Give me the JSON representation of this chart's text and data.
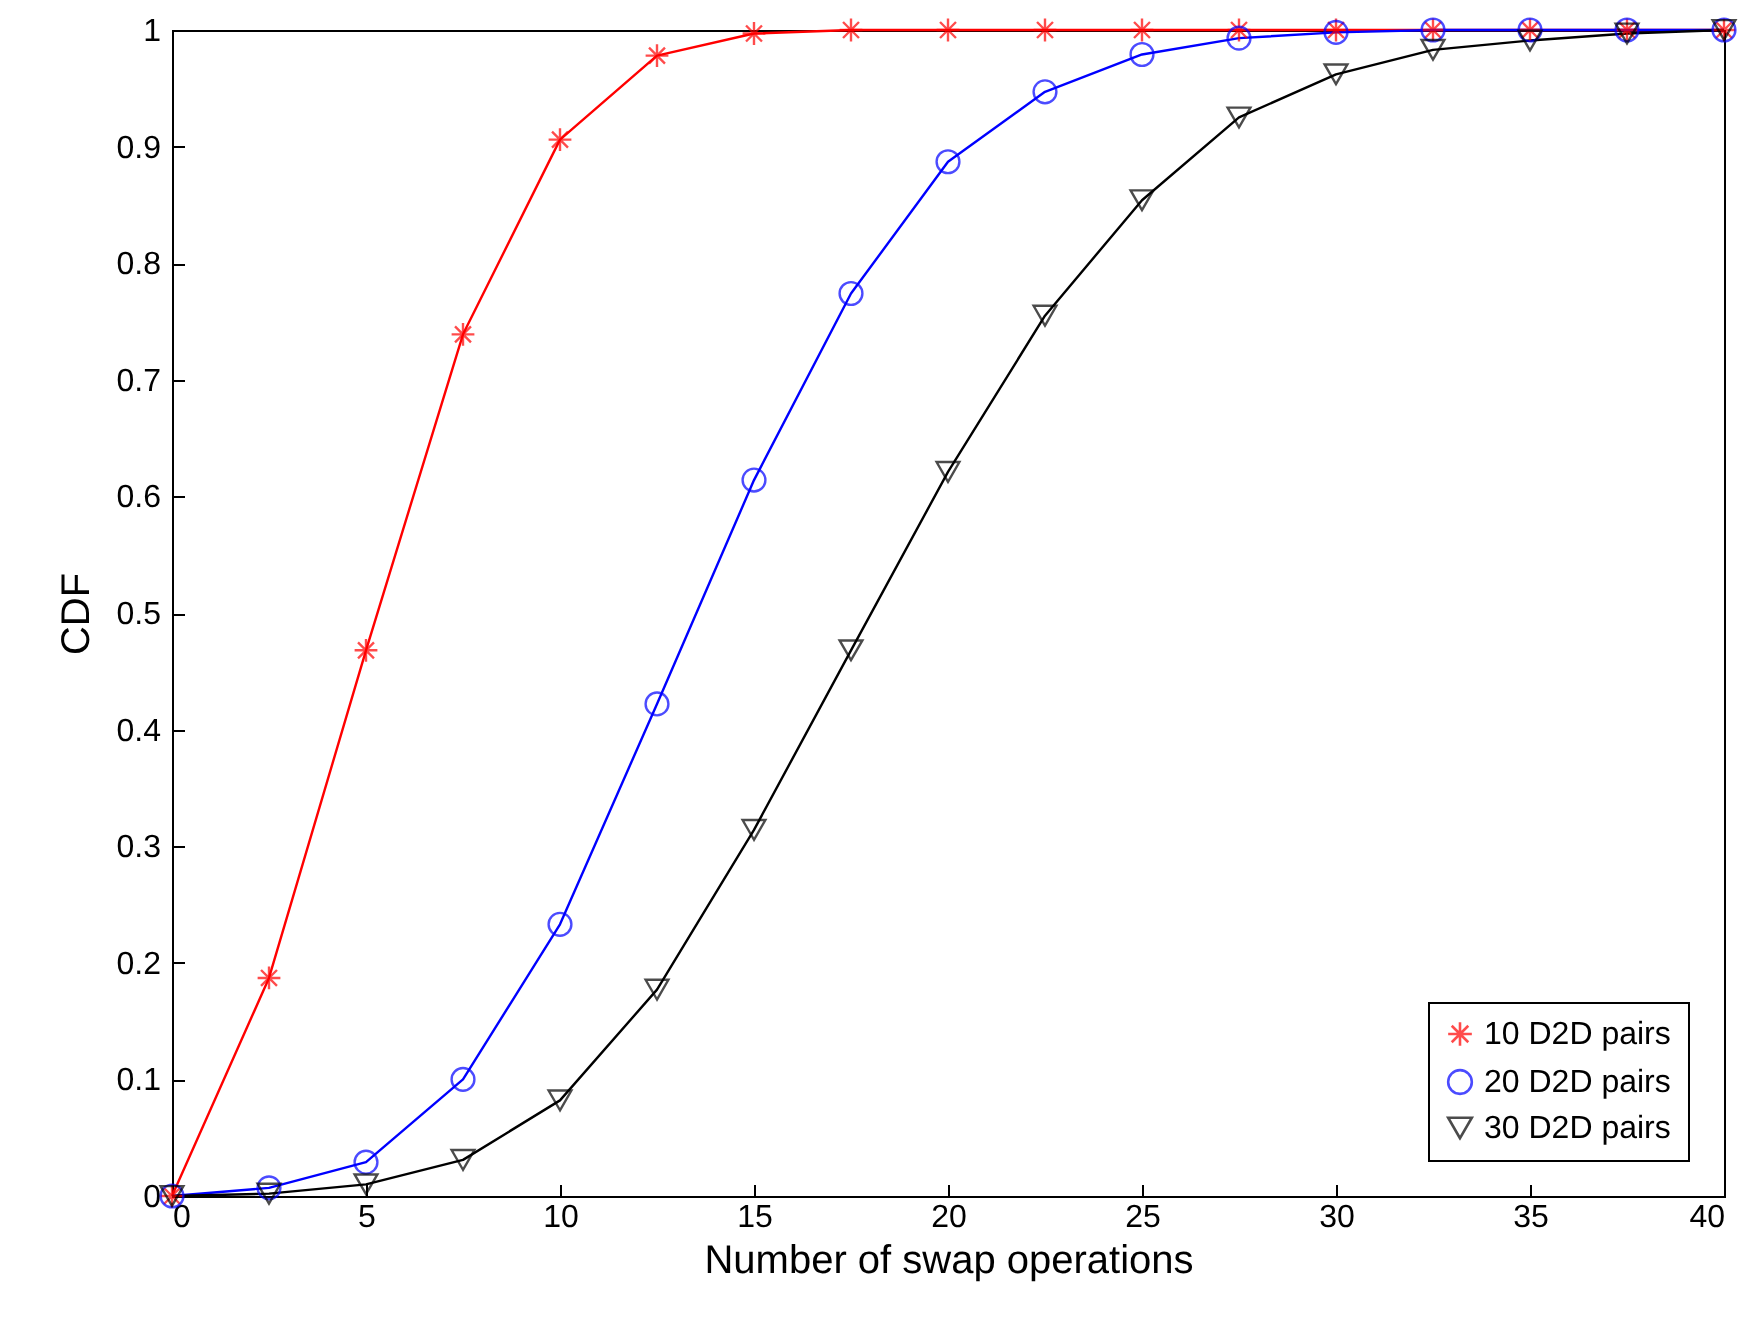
{
  "chart_data": {
    "type": "line",
    "xlabel": "Number of swap operations",
    "ylabel": "CDF",
    "x": [
      0,
      2.5,
      5,
      7.5,
      10,
      12.5,
      15,
      17.5,
      20,
      22.5,
      25,
      27.5,
      30,
      32.5,
      35,
      37.5,
      40
    ],
    "series": [
      {
        "name": "10 D2D pairs",
        "color": "#ff0000",
        "marker": "cross",
        "values": [
          0,
          0.187,
          0.468,
          0.739,
          0.906,
          0.978,
          0.997,
          1,
          1,
          1,
          1,
          1,
          1,
          1,
          1,
          1,
          1
        ]
      },
      {
        "name": "20 D2D pairs",
        "color": "#0000ff",
        "marker": "circle",
        "values": [
          0,
          0.007,
          0.029,
          0.1,
          0.233,
          0.422,
          0.614,
          0.774,
          0.887,
          0.947,
          0.979,
          0.993,
          0.998,
          1,
          1,
          1,
          1
        ]
      },
      {
        "name": "30 D2D pairs",
        "color": "#000000",
        "marker": "triangle",
        "values": [
          0,
          0.002,
          0.01,
          0.031,
          0.082,
          0.177,
          0.314,
          0.468,
          0.621,
          0.755,
          0.854,
          0.925,
          0.962,
          0.983,
          0.991,
          0.997,
          1
        ]
      }
    ],
    "xlim": [
      0,
      40
    ],
    "xticks": [
      0,
      5,
      10,
      15,
      20,
      25,
      30,
      35,
      40
    ],
    "ylim": [
      0,
      1
    ],
    "yticks": [
      0,
      0.1,
      0.2,
      0.3,
      0.4,
      0.5,
      0.6,
      0.7,
      0.8,
      0.9,
      1
    ],
    "legend": "bottom right",
    "grid": false,
    "line_style": "solid"
  }
}
